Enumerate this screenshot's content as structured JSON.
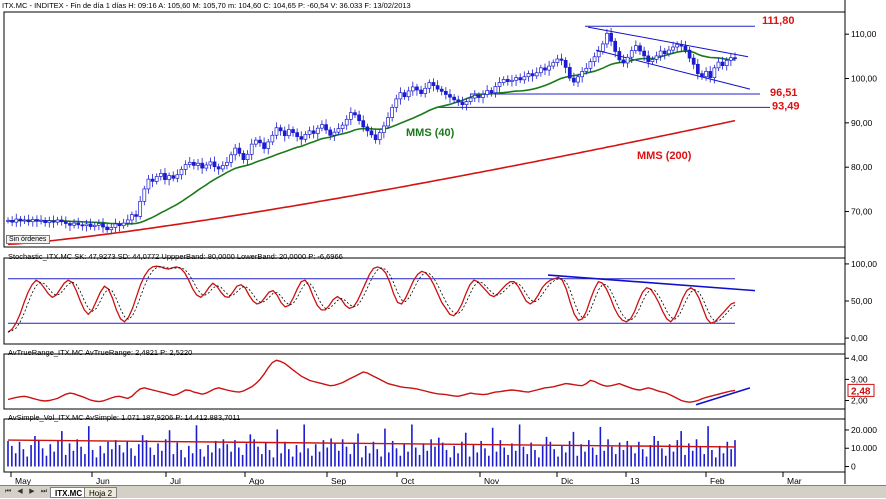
{
  "header": {
    "price_title": "ITX.MC - INDITEX - Fin de día 1 días  H: 09:16  A: 105,60  M: 105,70  m: 104,60  C: 104,65  P: -60,54  V: 36.033  F: 13/02/2013",
    "stoch_title": "Stochastic_ITX.MC  SK: 47,9273  SD: 44,0772  UppperBand: 80,0000  LowerBand: 20,0000  P: -6,6966",
    "atr_title": "AvTrueRange_ITX.MC  AvTrueRange: 2,4821  P: 2,5220",
    "vol_title": "AvSimple_Vol_ITX.MC  AvSimple: 1.071.187,9206  P: 14.412.883,7011"
  },
  "chip_label": "Sin órdenes",
  "tabs": [
    "ITX.MC",
    "Hoja 2"
  ],
  "colors": {
    "up": "#1b1bd0",
    "ma40": "#1a7a1a",
    "ma200": "#d21414",
    "hline": "#2222cc",
    "trend": "#1010cc",
    "atr": "#cc1111",
    "text_red": "#dd1111"
  },
  "chart_data": [
    {
      "type": "candlestick",
      "panel": "price",
      "ylim": [
        62,
        115
      ],
      "yticks": [
        70,
        80,
        90,
        100,
        110
      ],
      "ytick_labels": [
        "70,00",
        "80,00",
        "90,00",
        "100,00",
        "110,00"
      ],
      "xtick_labels": [
        "May",
        "Jun",
        "Jul",
        "Ago",
        "Sep",
        "Oct",
        "Nov",
        "Dic",
        "13",
        "Feb",
        "Mar"
      ],
      "closes": [
        68.0,
        67.6,
        68.3,
        67.9,
        68.1,
        67.7,
        68.2,
        67.8,
        68.0,
        67.5,
        67.9,
        67.6,
        68.1,
        67.7,
        67.3,
        66.9,
        67.4,
        67.0,
        66.8,
        67.2,
        66.6,
        66.9,
        67.3,
        66.5,
        65.9,
        66.4,
        67.2,
        66.8,
        67.4,
        68.1,
        69.3,
        68.9,
        72.3,
        75.1,
        77.3,
        76.8,
        77.9,
        78.6,
        77.2,
        78.1,
        77.5,
        78.3,
        79.5,
        80.6,
        81.1,
        80.4,
        80.9,
        79.8,
        80.5,
        81.2,
        80.1,
        79.6,
        80.4,
        81.1,
        82.8,
        84.3,
        83.1,
        81.7,
        82.9,
        85.2,
        86.1,
        85.5,
        84.2,
        85.7,
        87.2,
        88.9,
        88.2,
        87.1,
        88.5,
        87.8,
        86.9,
        86.3,
        87.4,
        88.2,
        87.6,
        88.8,
        89.6,
        88.4,
        87.2,
        87.9,
        88.7,
        89.5,
        90.8,
        92.3,
        91.8,
        90.5,
        89.1,
        88.2,
        87.3,
        86.2,
        87.8,
        89.3,
        91.2,
        93.5,
        95.4,
        96.8,
        95.9,
        97.2,
        98.1,
        97.4,
        96.6,
        97.8,
        99.1,
        98.4,
        97.6,
        97.1,
        96.4,
        95.8,
        95.2,
        94.7,
        94.1,
        94.8,
        95.6,
        96.2,
        95.7,
        96.4,
        97.3,
        96.8,
        98.2,
        99.1,
        99.8,
        99.3,
        99.6,
        100.2,
        99.7,
        100.4,
        101.1,
        100.6,
        101.3,
        102.4,
        101.9,
        102.8,
        103.6,
        104.4,
        104.1,
        102.5,
        100.1,
        99.2,
        100.4,
        101.6,
        102.3,
        103.8,
        104.9,
        106.1,
        107.8,
        110.2,
        108.4,
        106.1,
        104.2,
        103.5,
        104.8,
        106.3,
        107.4,
        106.2,
        105.1,
        103.8,
        104.3,
        105.1,
        106.2,
        105.6,
        106.4,
        107.1,
        107.7,
        107.3,
        106.4,
        104.6,
        103.2,
        101.1,
        100.4,
        101.6,
        100.2,
        102.4,
        103.7,
        102.9,
        104.1,
        104.7,
        104.65
      ],
      "ma40_last": 105.6,
      "ma200_last": 90.5,
      "levels": [
        111.8,
        96.51,
        93.49
      ],
      "level_labels": [
        "111,80",
        "96,51",
        "93,49"
      ],
      "annotations": [
        "MMS (40)",
        "MMS (200)"
      ]
    },
    {
      "type": "line",
      "panel": "stochastic",
      "ylim": [
        -8,
        108
      ],
      "yticks": [
        0,
        50,
        100
      ],
      "ytick_labels": [
        "0,00",
        "50,00",
        "100,00"
      ],
      "bands": [
        80,
        20
      ],
      "sk": [
        8,
        12,
        20,
        32,
        48,
        62,
        72,
        78,
        75,
        68,
        60,
        55,
        58,
        66,
        74,
        78,
        75,
        64,
        50,
        38,
        32,
        38,
        50,
        62,
        70,
        66,
        54,
        38,
        26,
        22,
        28,
        40,
        56,
        72,
        84,
        92,
        96,
        97,
        96,
        94,
        93,
        95,
        96,
        94,
        88,
        78,
        66,
        58,
        55,
        60,
        68,
        74,
        70,
        62,
        56,
        55,
        62,
        70,
        72,
        68,
        58,
        50,
        46,
        48,
        55,
        62,
        64,
        58,
        48,
        42,
        44,
        54,
        66,
        76,
        78,
        70,
        56,
        44,
        38,
        38,
        44,
        52,
        56,
        52,
        44,
        40,
        42,
        50,
        62,
        74,
        86,
        94,
        96,
        94,
        88,
        76,
        60,
        48,
        46,
        54,
        66,
        78,
        86,
        90,
        88,
        82,
        72,
        60,
        48,
        40,
        32,
        30,
        36,
        46,
        60,
        72,
        78,
        76,
        70,
        64,
        58,
        56,
        60,
        66,
        72,
        76,
        76,
        70,
        60,
        50,
        46,
        50,
        58,
        68,
        74,
        78,
        80,
        82,
        78,
        66,
        48,
        32,
        24,
        26,
        36,
        52,
        66,
        76,
        74,
        66,
        54,
        40,
        30,
        24,
        22,
        26,
        36,
        50,
        62,
        68,
        66,
        58,
        48,
        36,
        26,
        22,
        28,
        40,
        54,
        64,
        68,
        64,
        54,
        40,
        26,
        20,
        22,
        28,
        34,
        40,
        46,
        48
      ]
    },
    {
      "type": "line",
      "panel": "atr",
      "ylim": [
        1.6,
        4.2
      ],
      "yticks": [
        2,
        3,
        4
      ],
      "ytick_labels": [
        "2,00",
        "3,00",
        "4,00"
      ],
      "value_label": "2,48",
      "values": [
        2.05,
        2.1,
        2.15,
        2.18,
        2.2,
        2.16,
        2.1,
        2.05,
        2.0,
        1.98,
        2.0,
        2.05,
        2.1,
        2.2,
        2.3,
        2.35,
        2.32,
        2.25,
        2.18,
        2.1,
        2.02,
        1.98,
        1.95,
        1.98,
        2.05,
        2.12,
        2.18,
        2.2,
        2.15,
        2.1,
        2.2,
        2.4,
        2.55,
        2.6,
        2.55,
        2.5,
        2.45,
        2.4,
        2.35,
        2.3,
        2.25,
        2.3,
        2.4,
        2.5,
        2.48,
        2.4,
        2.35,
        2.3,
        2.35,
        2.45,
        2.55,
        2.6,
        2.55,
        2.5,
        2.45,
        2.42,
        2.4,
        2.45,
        2.55,
        2.65,
        2.8,
        3.0,
        3.25,
        3.55,
        3.8,
        3.9,
        3.85,
        3.75,
        3.6,
        3.45,
        3.3,
        3.15,
        3.05,
        2.95,
        2.9,
        2.85,
        2.8,
        2.75,
        2.7,
        2.72,
        2.78,
        2.85,
        2.95,
        3.05,
        3.15,
        3.25,
        3.35,
        3.3,
        3.2,
        3.1,
        3.0,
        2.9,
        2.8,
        2.75,
        2.7,
        2.65,
        2.62,
        2.6,
        2.58,
        2.55,
        2.5,
        2.45,
        2.4,
        2.35,
        2.32,
        2.3,
        2.28,
        2.25,
        2.22,
        2.2,
        2.25,
        2.3,
        2.35,
        2.32,
        2.3,
        2.28,
        2.3,
        2.35,
        2.4,
        2.42,
        2.45,
        2.48,
        2.5,
        2.48,
        2.45,
        2.42,
        2.4,
        2.45,
        2.5,
        2.55,
        2.6,
        2.62,
        2.65,
        2.7,
        2.75,
        2.8,
        2.78,
        2.75,
        2.72,
        2.7,
        2.8,
        2.95,
        2.9,
        2.8,
        2.72,
        2.68,
        2.7,
        2.75,
        2.8,
        2.72,
        2.65,
        2.58,
        2.52,
        2.5,
        2.55,
        2.6,
        2.55,
        2.48,
        2.42,
        2.38,
        2.3,
        2.2,
        2.1,
        2.0,
        1.95,
        1.92,
        1.95,
        2.0,
        2.08,
        2.15,
        2.2,
        2.25,
        2.3,
        2.35,
        2.4,
        2.45,
        2.48
      ]
    },
    {
      "type": "bar",
      "panel": "volume",
      "ylim": [
        -3,
        26
      ],
      "yticks": [
        0,
        10,
        20
      ],
      "ytick_labels": [
        "0",
        "10.000",
        "20.000"
      ],
      "avg_start": 14.5,
      "avg_end": 10.7
    }
  ]
}
